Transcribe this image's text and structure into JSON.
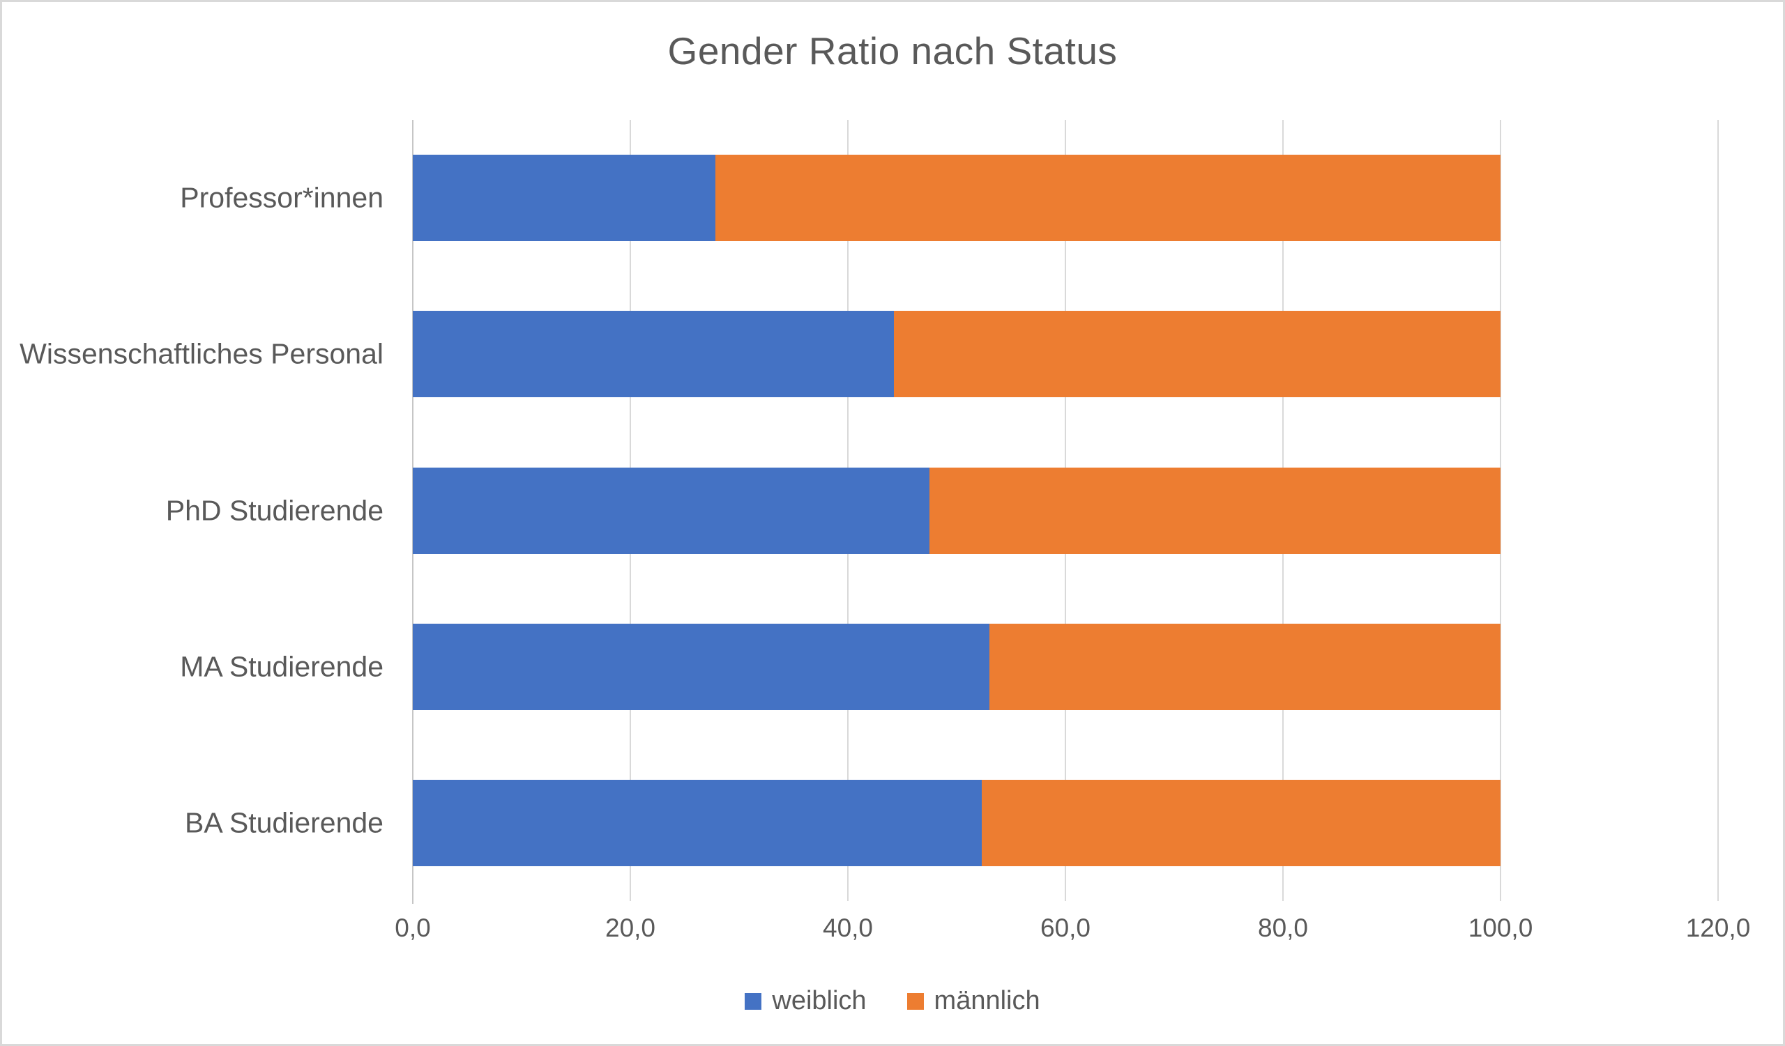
{
  "chart_data": {
    "type": "bar",
    "orientation": "horizontal",
    "stacked": true,
    "title": "Gender Ratio nach Status",
    "categories": [
      "Professor*innen",
      "Wissenschaftliches Personal",
      "PhD Studierende",
      "MA Studierende",
      "BA Studierende"
    ],
    "series": [
      {
        "name": "weiblich",
        "color": "#4472C4",
        "values": [
          27.8,
          44.2,
          47.5,
          53.0,
          52.3
        ]
      },
      {
        "name": "männlich",
        "color": "#ED7D31",
        "values": [
          72.2,
          55.8,
          52.5,
          47.0,
          47.7
        ]
      }
    ],
    "x_axis": {
      "min": 0,
      "max": 120,
      "tick_step": 20,
      "tick_labels": [
        "0,0",
        "20,0",
        "40,0",
        "60,0",
        "80,0",
        "100,0",
        "120,0"
      ]
    },
    "y_axis_label": "",
    "x_axis_label": "",
    "grid": true,
    "legend_position": "bottom"
  },
  "palette": {
    "weiblich": "#4472C4",
    "maennlich": "#ED7D31",
    "gridline": "#D9D9D9",
    "axis_line": "#C6C6C6",
    "text": "#595959",
    "frame_border": "#D9D9D9",
    "background": "#FFFFFF"
  }
}
